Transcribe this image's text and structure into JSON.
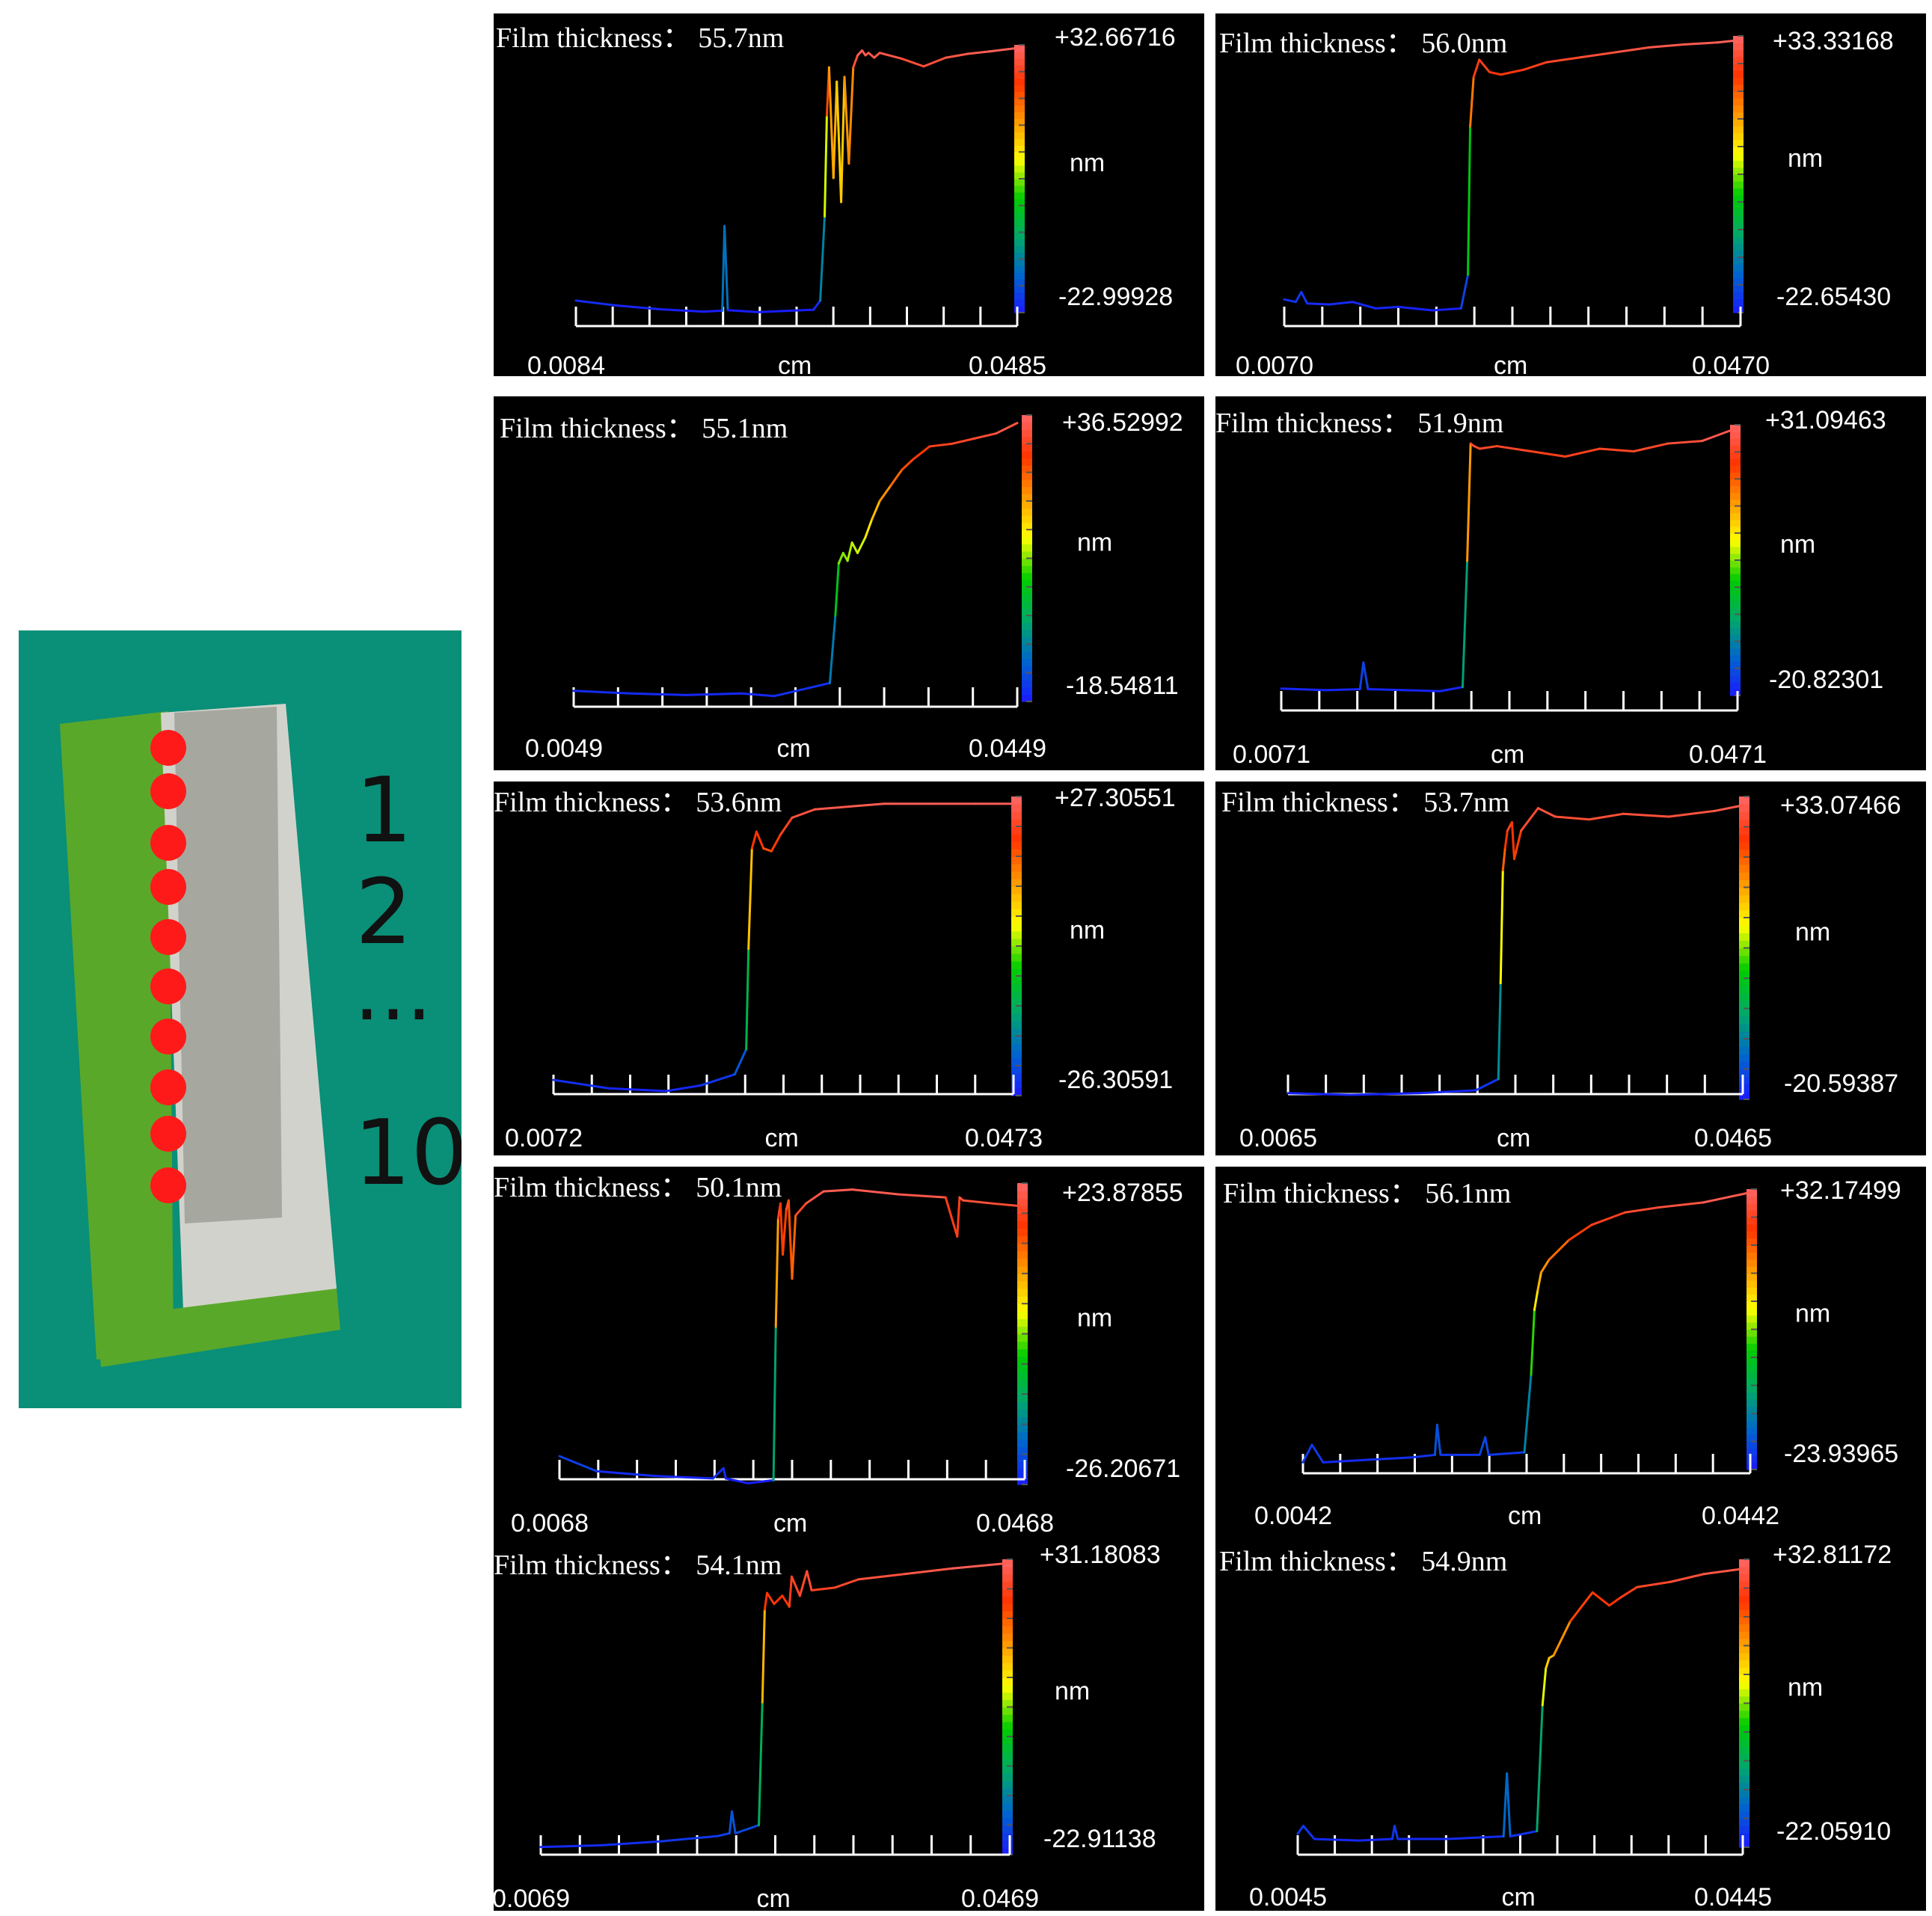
{
  "figure": {
    "sample_labels": [
      "1",
      "2",
      "...",
      "10"
    ],
    "measurement_point_color": "#ff1a1a",
    "photo_colors": {
      "background": "#0a8f78",
      "film": "#5aa82a",
      "substrate": "#a6a8a0",
      "silver_edge": "#d2d2cc"
    }
  },
  "colorbar": {
    "stops": [
      "#1a1aff",
      "#0066cc",
      "#00aa66",
      "#00cc00",
      "#ffff00",
      "#ff9900",
      "#ff3300",
      "#ff6666"
    ]
  },
  "chart_data": [
    {
      "type": "line",
      "title": "Film thickness： 55.7nm",
      "xlabel": "cm",
      "colorbar_label": "nm",
      "x_tick_labels": [
        "0.0084",
        "0.0485"
      ],
      "xlim": [
        0.0084,
        0.0485
      ],
      "ylim": [
        -22.99928,
        32.66716
      ],
      "colorbar_labels": [
        "+32.66716",
        "-22.99928"
      ],
      "x_ticks_count": 13,
      "series": [
        {
          "x": [
            0.0084,
            0.012,
            0.016,
            0.02,
            0.0217,
            0.0219,
            0.0222,
            0.025,
            0.03,
            0.0306,
            0.031,
            0.0312,
            0.0314,
            0.0318,
            0.0321,
            0.0325,
            0.0328,
            0.0332,
            0.0336,
            0.034,
            0.0344,
            0.0347,
            0.035,
            0.0355,
            0.036,
            0.038,
            0.04,
            0.042,
            0.044,
            0.046,
            0.0485
          ],
          "y": [
            -20.5,
            -21.5,
            -22.3,
            -22.8,
            -22.6,
            -5.0,
            -22.5,
            -22.9,
            -22.4,
            -20.5,
            -3.0,
            18.0,
            28.0,
            5.0,
            25.0,
            0.0,
            26.0,
            8.0,
            28.0,
            30.5,
            31.5,
            30.5,
            31.0,
            30.0,
            31.0,
            29.8,
            28.2,
            30.0,
            30.8,
            31.3,
            32.0
          ]
        }
      ]
    },
    {
      "type": "line",
      "title": "Film thickness： 56.0nm",
      "xlabel": "cm",
      "colorbar_label": "nm",
      "x_tick_labels": [
        "0.0070",
        "0.0470"
      ],
      "xlim": [
        0.007,
        0.047
      ],
      "ylim": [
        -22.6543,
        33.33168
      ],
      "colorbar_labels": [
        "+33.33168",
        "-22.65430"
      ],
      "x_ticks_count": 13,
      "series": [
        {
          "x": [
            0.007,
            0.008,
            0.0085,
            0.009,
            0.011,
            0.013,
            0.015,
            0.017,
            0.02,
            0.0225,
            0.0231,
            0.0233,
            0.0236,
            0.0241,
            0.025,
            0.026,
            0.028,
            0.03,
            0.033,
            0.036,
            0.039,
            0.042,
            0.045,
            0.047
          ],
          "y": [
            -20.0,
            -20.5,
            -18.5,
            -20.8,
            -21.0,
            -20.5,
            -21.8,
            -21.5,
            -22.2,
            -21.8,
            -15.0,
            15.0,
            25.0,
            28.5,
            26.0,
            25.5,
            26.5,
            28.0,
            29.0,
            30.0,
            31.0,
            31.6,
            32.0,
            32.5
          ]
        }
      ]
    },
    {
      "type": "line",
      "title": "Film thickness： 55.1nm",
      "xlabel": "cm",
      "colorbar_label": "nm",
      "x_tick_labels": [
        "0.0049",
        "0.0449"
      ],
      "xlim": [
        0.0049,
        0.0449
      ],
      "ylim": [
        -18.54811,
        36.52992
      ],
      "colorbar_labels": [
        "+36.52992",
        "-18.54811"
      ],
      "x_ticks_count": 11,
      "series": [
        {
          "x": [
            0.0049,
            0.01,
            0.015,
            0.02,
            0.023,
            0.028,
            0.0285,
            0.0288,
            0.0292,
            0.0296,
            0.03,
            0.0305,
            0.0312,
            0.0318,
            0.0325,
            0.0335,
            0.0345,
            0.0355,
            0.037,
            0.039,
            0.041,
            0.043,
            0.0449
          ],
          "y": [
            -16.5,
            -17.0,
            -17.3,
            -17.0,
            -17.5,
            -15.0,
            -2.0,
            8.0,
            10.0,
            8.5,
            12.0,
            10.0,
            13.0,
            16.5,
            20.0,
            23.0,
            26.0,
            28.0,
            30.5,
            31.0,
            32.0,
            33.0,
            35.0
          ]
        }
      ]
    },
    {
      "type": "line",
      "title": "Film thickness： 51.9nm",
      "xlabel": "cm",
      "colorbar_label": "nm",
      "x_tick_labels": [
        "0.0071",
        "0.0471"
      ],
      "xlim": [
        0.0071,
        0.0471
      ],
      "ylim": [
        -20.82301,
        31.09463
      ],
      "colorbar_labels": [
        "+31.09463",
        "-20.82301"
      ],
      "x_ticks_count": 13,
      "series": [
        {
          "x": [
            0.0071,
            0.011,
            0.014,
            0.0143,
            0.0147,
            0.018,
            0.021,
            0.023,
            0.0234,
            0.0237,
            0.024,
            0.0245,
            0.026,
            0.029,
            0.032,
            0.035,
            0.038,
            0.041,
            0.044,
            0.0471
          ],
          "y": [
            -19.5,
            -19.8,
            -19.6,
            -14.5,
            -19.6,
            -19.8,
            -20.0,
            -19.2,
            5.0,
            27.5,
            27.0,
            26.5,
            27.0,
            26.0,
            25.0,
            26.5,
            26.0,
            27.5,
            28.0,
            30.5
          ]
        }
      ]
    },
    {
      "type": "line",
      "title": "Film thickness： 53.6nm",
      "xlabel": "cm",
      "colorbar_label": "nm",
      "x_tick_labels": [
        "0.0072",
        "0.0473"
      ],
      "xlim": [
        0.0072,
        0.0473
      ],
      "ylim": [
        -26.30591,
        27.30551
      ],
      "colorbar_labels": [
        "+27.30551",
        "-26.30591"
      ],
      "x_ticks_count": 13,
      "series": [
        {
          "x": [
            0.0072,
            0.012,
            0.017,
            0.02,
            0.023,
            0.024,
            0.0242,
            0.0245,
            0.0249,
            0.0255,
            0.0262,
            0.027,
            0.028,
            0.03,
            0.033,
            0.036,
            0.04,
            0.044,
            0.0473
          ],
          "y": [
            -23.5,
            -25.0,
            -25.5,
            -24.5,
            -22.5,
            -18.0,
            0.0,
            18.0,
            21.0,
            18.0,
            17.5,
            20.5,
            23.5,
            25.0,
            25.5,
            26.0,
            26.0,
            26.0,
            26.0
          ]
        }
      ]
    },
    {
      "type": "line",
      "title": "Film thickness： 53.7nm",
      "xlabel": "cm",
      "colorbar_label": "nm",
      "x_tick_labels": [
        "0.0065",
        "0.0465"
      ],
      "xlim": [
        0.0065,
        0.0465
      ],
      "ylim": [
        -20.59387,
        33.07466
      ],
      "colorbar_labels": [
        "+33.07466",
        "-20.59387"
      ],
      "x_ticks_count": 13,
      "series": [
        {
          "x": [
            0.0065,
            0.012,
            0.018,
            0.023,
            0.025,
            0.0252,
            0.0254,
            0.0256,
            0.0258,
            0.0262,
            0.0264,
            0.027,
            0.0285,
            0.03,
            0.033,
            0.036,
            0.04,
            0.044,
            0.0465
          ],
          "y": [
            -19.5,
            -19.8,
            -19.5,
            -19.0,
            -17.0,
            0.0,
            20.0,
            24.0,
            27.0,
            28.5,
            22.0,
            27.0,
            31.0,
            29.5,
            29.0,
            30.0,
            29.5,
            30.5,
            31.5
          ]
        }
      ]
    },
    {
      "type": "line",
      "title": "Film thickness： 50.1nm",
      "xlabel": "cm",
      "colorbar_label": "nm",
      "x_tick_labels": [
        "0.0068",
        "0.0468"
      ],
      "xlim": [
        0.0068,
        0.0468
      ],
      "ylim": [
        -26.20671,
        23.87855
      ],
      "colorbar_labels": [
        "+23.87855",
        "-26.20671"
      ],
      "x_ticks_count": 13,
      "series": [
        {
          "x": [
            0.0068,
            0.01,
            0.015,
            0.02,
            0.0209,
            0.0211,
            0.023,
            0.0252,
            0.0254,
            0.0256,
            0.0258,
            0.026,
            0.0263,
            0.0265,
            0.0268,
            0.0271,
            0.028,
            0.0295,
            0.032,
            0.036,
            0.04,
            0.041,
            0.0412,
            0.0415,
            0.044,
            0.0468
          ],
          "y": [
            -21.5,
            -24.0,
            -24.8,
            -25.2,
            -23.5,
            -25.2,
            -26.0,
            -25.5,
            0.0,
            18.0,
            20.5,
            12.0,
            19.5,
            21.0,
            8.0,
            18.5,
            20.5,
            22.5,
            22.8,
            22.0,
            21.5,
            15.0,
            21.5,
            21.0,
            20.5,
            20.0
          ]
        }
      ]
    },
    {
      "type": "line",
      "title": "Film thickness： 56.1nm",
      "xlabel": "cm",
      "colorbar_label": "nm",
      "x_tick_labels": [
        "0.0042",
        "0.0442"
      ],
      "xlim": [
        0.0042,
        0.0442
      ],
      "ylim": [
        -23.93965,
        32.17499
      ],
      "colorbar_labels": [
        "+32.17499",
        "-23.93965"
      ],
      "x_ticks_count": 13,
      "series": [
        {
          "x": [
            0.0042,
            0.005,
            0.006,
            0.01,
            0.014,
            0.016,
            0.0162,
            0.0165,
            0.02,
            0.0205,
            0.0208,
            0.024,
            0.0246,
            0.0249,
            0.0252,
            0.0255,
            0.0262,
            0.028,
            0.03,
            0.033,
            0.036,
            0.04,
            0.0442
          ],
          "y": [
            -22.5,
            -19.0,
            -22.5,
            -22.0,
            -21.5,
            -21.0,
            -15.0,
            -21.0,
            -21.0,
            -17.5,
            -21.0,
            -20.5,
            -5.0,
            8.0,
            12.0,
            15.5,
            18.0,
            22.0,
            25.0,
            27.5,
            28.5,
            29.5,
            31.5
          ]
        }
      ]
    },
    {
      "type": "line",
      "title": "Film thickness： 54.1nm",
      "xlabel": "cm",
      "colorbar_label": "nm",
      "x_tick_labels": [
        "0.0069",
        "0.0469"
      ],
      "xlim": [
        0.0069,
        0.0469
      ],
      "ylim": [
        -22.91138,
        31.18083
      ],
      "colorbar_labels": [
        "+31.18083",
        "-22.91138"
      ],
      "x_ticks_count": 13,
      "series": [
        {
          "x": [
            0.0069,
            0.012,
            0.017,
            0.022,
            0.023,
            0.0232,
            0.0235,
            0.0255,
            0.0258,
            0.026,
            0.0262,
            0.0268,
            0.0275,
            0.0281,
            0.0283,
            0.029,
            0.0296,
            0.03,
            0.032,
            0.034,
            0.038,
            0.042,
            0.0469
          ],
          "y": [
            -21.5,
            -21.2,
            -20.5,
            -19.5,
            -19.0,
            -15.0,
            -19.0,
            -17.5,
            5.0,
            22.0,
            25.0,
            23.0,
            24.5,
            22.5,
            28.0,
            24.5,
            29.0,
            25.5,
            26.0,
            27.5,
            28.5,
            29.5,
            30.5
          ]
        }
      ]
    },
    {
      "type": "line",
      "title": "Film thickness： 54.9nm",
      "xlabel": "cm",
      "colorbar_label": "nm",
      "x_tick_labels": [
        "0.0045",
        "0.0445"
      ],
      "xlim": [
        0.0045,
        0.0445
      ],
      "ylim": [
        -22.0591,
        32.81172
      ],
      "colorbar_labels": [
        "+32.81172",
        "-22.05910"
      ],
      "x_ticks_count": 13,
      "series": [
        {
          "x": [
            0.0045,
            0.005,
            0.006,
            0.01,
            0.013,
            0.0132,
            0.0135,
            0.018,
            0.023,
            0.0233,
            0.0236,
            0.026,
            0.0265,
            0.0268,
            0.0271,
            0.0275,
            0.029,
            0.031,
            0.0325,
            0.0335,
            0.035,
            0.038,
            0.041,
            0.0445
          ],
          "y": [
            -19.5,
            -18.0,
            -20.5,
            -20.8,
            -20.5,
            -18.0,
            -20.5,
            -20.5,
            -20.0,
            -8.0,
            -20.0,
            -19.0,
            5.0,
            12.0,
            14.0,
            14.5,
            21.0,
            26.5,
            24.0,
            25.5,
            27.5,
            28.5,
            30.0,
            31.0
          ]
        }
      ]
    }
  ]
}
